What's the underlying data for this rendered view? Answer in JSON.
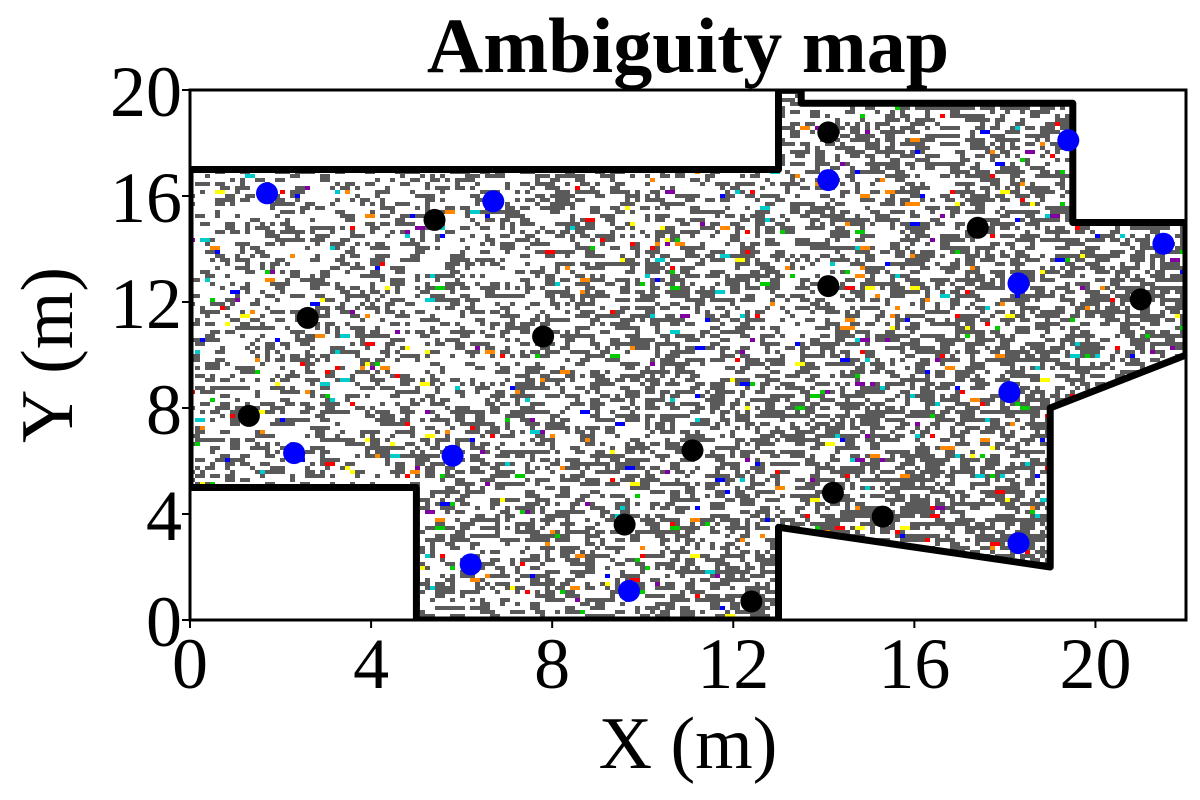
{
  "chart_data": {
    "type": "scatter",
    "title": "Ambiguity map",
    "xlabel": "X (m)",
    "ylabel": "Y (m)",
    "xlim": [
      0,
      22
    ],
    "ylim": [
      0,
      20
    ],
    "xticks": [
      "0",
      "4",
      "8",
      "12",
      "16",
      "20"
    ],
    "yticks": [
      "0",
      "4",
      "8",
      "12",
      "16",
      "20"
    ],
    "grid": false,
    "background_texture": "dense dark-gray ambiguity cells with sparse red, green, yellow, blue, cyan and purple cells inside the floor plan",
    "floor_outline": [
      [
        0,
        17
      ],
      [
        13,
        17
      ],
      [
        13,
        20
      ],
      [
        13.5,
        20
      ],
      [
        13.5,
        19.5
      ],
      [
        19.5,
        19.5
      ],
      [
        19.5,
        15
      ],
      [
        22,
        15
      ],
      [
        22,
        10
      ],
      [
        19,
        8
      ],
      [
        19,
        2
      ],
      [
        13,
        3.5
      ],
      [
        13,
        0
      ],
      [
        5,
        0
      ],
      [
        5,
        5
      ],
      [
        0,
        5
      ]
    ],
    "series": [
      {
        "color": "#000000",
        "points": [
          [
            14.1,
            18.4
          ],
          [
            5.4,
            15.1
          ],
          [
            17.4,
            14.8
          ],
          [
            14.1,
            12.6
          ],
          [
            21.0,
            12.1
          ],
          [
            2.6,
            11.4
          ],
          [
            7.8,
            10.7
          ],
          [
            1.3,
            7.7
          ],
          [
            11.1,
            6.4
          ],
          [
            14.2,
            4.8
          ],
          [
            15.3,
            3.9
          ],
          [
            9.6,
            3.6
          ],
          [
            12.4,
            0.7
          ]
        ]
      },
      {
        "color": "#0000ff",
        "points": [
          [
            19.4,
            18.1
          ],
          [
            14.1,
            16.6
          ],
          [
            1.7,
            16.1
          ],
          [
            6.7,
            15.8
          ],
          [
            21.5,
            14.2
          ],
          [
            18.3,
            12.7
          ],
          [
            18.1,
            8.6
          ],
          [
            2.3,
            6.3
          ],
          [
            5.8,
            6.2
          ],
          [
            6.2,
            2.1
          ],
          [
            9.7,
            1.1
          ],
          [
            18.3,
            2.9
          ]
        ]
      }
    ]
  }
}
